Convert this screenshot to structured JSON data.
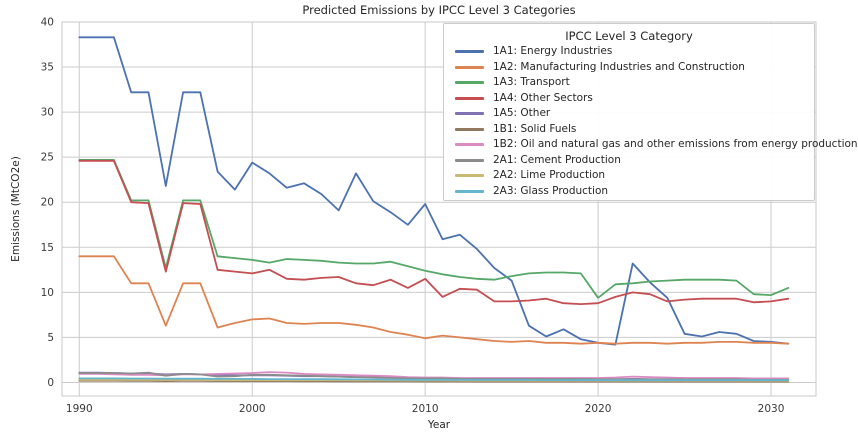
{
  "chart_data": {
    "type": "line",
    "title": "Predicted Emissions by IPCC Level 3 Categories",
    "xlabel": "Year",
    "ylabel": "Emissions (MtCO2e)",
    "xlim": [
      1989.0,
      2032.6
    ],
    "ylim": [
      -1.5,
      40.0
    ],
    "xticks": [
      1990,
      2000,
      2010,
      2020,
      2030
    ],
    "yticks": [
      0,
      5,
      10,
      15,
      20,
      25,
      30,
      35,
      40
    ],
    "grid": true,
    "legend": {
      "title": "IPCC Level 3 Category",
      "position": "upper right"
    },
    "x": [
      1990,
      1991,
      1992,
      1993,
      1994,
      1995,
      1996,
      1997,
      1998,
      1999,
      2000,
      2001,
      2002,
      2003,
      2004,
      2005,
      2006,
      2007,
      2008,
      2009,
      2010,
      2011,
      2012,
      2013,
      2014,
      2015,
      2016,
      2017,
      2018,
      2019,
      2020,
      2021,
      2022,
      2023,
      2024,
      2025,
      2026,
      2027,
      2028,
      2029,
      2030,
      2031
    ],
    "series": [
      {
        "name": "1A1: Energy Industries",
        "color": "#4C72B0",
        "values": [
          38.3,
          38.3,
          38.3,
          32.2,
          32.2,
          21.8,
          32.2,
          32.2,
          23.4,
          21.4,
          24.4,
          23.2,
          21.6,
          22.1,
          20.9,
          19.1,
          23.2,
          20.1,
          18.9,
          17.5,
          19.8,
          15.9,
          16.4,
          14.8,
          12.7,
          11.3,
          6.3,
          5.1,
          5.9,
          4.8,
          4.4,
          4.2,
          13.2,
          11.1,
          9.4,
          5.4,
          5.1,
          5.6,
          5.4,
          4.6,
          4.5,
          4.3
        ]
      },
      {
        "name": "1A2: Manufacturing Industries and Construction",
        "color": "#DD8452",
        "values": [
          14.0,
          14.0,
          14.0,
          11.0,
          11.0,
          6.3,
          11.0,
          11.0,
          6.1,
          6.6,
          7.0,
          7.1,
          6.6,
          6.5,
          6.6,
          6.6,
          6.4,
          6.1,
          5.6,
          5.3,
          4.9,
          5.2,
          5.0,
          4.8,
          4.6,
          4.5,
          4.6,
          4.4,
          4.4,
          4.3,
          4.4,
          4.3,
          4.4,
          4.4,
          4.3,
          4.4,
          4.4,
          4.5,
          4.5,
          4.4,
          4.4,
          4.3
        ]
      },
      {
        "name": "1A3: Transport",
        "color": "#55A868",
        "values": [
          24.7,
          24.7,
          24.7,
          20.2,
          20.2,
          12.7,
          20.2,
          20.2,
          14.0,
          13.8,
          13.6,
          13.3,
          13.7,
          13.6,
          13.5,
          13.3,
          13.2,
          13.2,
          13.4,
          12.9,
          12.4,
          12.0,
          11.7,
          11.5,
          11.4,
          11.8,
          12.1,
          12.2,
          12.2,
          12.1,
          9.4,
          10.9,
          11.0,
          11.2,
          11.3,
          11.4,
          11.4,
          11.4,
          11.3,
          9.8,
          9.7,
          10.5
        ]
      },
      {
        "name": "1A4: Other Sectors",
        "color": "#C44E52",
        "values": [
          24.6,
          24.6,
          24.6,
          20.0,
          19.9,
          12.3,
          19.9,
          19.8,
          12.5,
          12.3,
          12.1,
          12.5,
          11.5,
          11.4,
          11.6,
          11.7,
          11.0,
          10.8,
          11.4,
          10.5,
          11.5,
          9.5,
          10.4,
          10.3,
          9.0,
          9.0,
          9.1,
          9.3,
          8.8,
          8.7,
          8.8,
          9.5,
          10.0,
          9.8,
          9.0,
          9.2,
          9.3,
          9.3,
          9.3,
          8.9,
          9.0,
          9.3
        ]
      },
      {
        "name": "1A5: Other",
        "color": "#8172B3",
        "values": [
          1.1,
          1.1,
          1.05,
          1.0,
          1.0,
          0.9,
          0.95,
          0.9,
          0.85,
          0.8,
          0.8,
          0.8,
          0.75,
          0.7,
          0.7,
          0.65,
          0.6,
          0.6,
          0.55,
          0.5,
          0.5,
          0.45,
          0.45,
          0.4,
          0.4,
          0.4,
          0.4,
          0.4,
          0.35,
          0.35,
          0.35,
          0.35,
          0.4,
          0.35,
          0.35,
          0.35,
          0.3,
          0.3,
          0.3,
          0.3,
          0.3,
          0.3
        ]
      },
      {
        "name": "1B1: Solid Fuels",
        "color": "#937860",
        "values": [
          0.2,
          0.2,
          0.2,
          0.18,
          0.18,
          0.15,
          0.17,
          0.17,
          0.15,
          0.15,
          0.15,
          0.15,
          0.15,
          0.14,
          0.14,
          0.13,
          0.13,
          0.12,
          0.12,
          0.12,
          0.11,
          0.11,
          0.11,
          0.1,
          0.1,
          0.1,
          0.1,
          0.1,
          0.1,
          0.1,
          0.1,
          0.1,
          0.1,
          0.1,
          0.1,
          0.1,
          0.1,
          0.1,
          0.1,
          0.1,
          0.1,
          0.1
        ]
      },
      {
        "name": "1B2: Oil and natural gas and other emissions from energy production",
        "color": "#DA8BC3",
        "values": [
          0.95,
          0.95,
          0.9,
          0.85,
          0.85,
          0.8,
          0.9,
          0.9,
          0.95,
          1.0,
          1.05,
          1.15,
          1.1,
          0.95,
          0.9,
          0.85,
          0.8,
          0.75,
          0.7,
          0.6,
          0.55,
          0.55,
          0.5,
          0.5,
          0.5,
          0.5,
          0.5,
          0.5,
          0.5,
          0.5,
          0.5,
          0.55,
          0.65,
          0.6,
          0.55,
          0.5,
          0.5,
          0.5,
          0.5,
          0.45,
          0.45,
          0.45
        ]
      },
      {
        "name": "2A1: Cement Production",
        "color": "#8C8C8C",
        "values": [
          1.05,
          1.05,
          1.05,
          1.0,
          1.1,
          0.75,
          0.95,
          0.9,
          0.65,
          0.7,
          0.85,
          0.85,
          0.8,
          0.75,
          0.7,
          0.65,
          0.6,
          0.55,
          0.5,
          0.45,
          0.45,
          0.45,
          0.4,
          0.4,
          0.4,
          0.4,
          0.4,
          0.4,
          0.4,
          0.4,
          0.35,
          0.35,
          0.35,
          0.35,
          0.35,
          0.35,
          0.35,
          0.35,
          0.35,
          0.3,
          0.3,
          0.3
        ]
      },
      {
        "name": "2A2: Lime Production",
        "color": "#CCB974",
        "values": [
          0.3,
          0.3,
          0.3,
          0.3,
          0.3,
          0.28,
          0.28,
          0.28,
          0.25,
          0.25,
          0.25,
          0.25,
          0.25,
          0.25,
          0.25,
          0.25,
          0.24,
          0.24,
          0.23,
          0.22,
          0.22,
          0.22,
          0.21,
          0.2,
          0.2,
          0.2,
          0.2,
          0.2,
          0.2,
          0.2,
          0.2,
          0.2,
          0.2,
          0.2,
          0.2,
          0.2,
          0.2,
          0.2,
          0.2,
          0.2,
          0.2,
          0.2
        ]
      },
      {
        "name": "2A3: Glass Production",
        "color": "#64B5CD",
        "values": [
          0.45,
          0.45,
          0.45,
          0.44,
          0.44,
          0.42,
          0.42,
          0.42,
          0.4,
          0.4,
          0.4,
          0.38,
          0.38,
          0.36,
          0.36,
          0.35,
          0.34,
          0.33,
          0.32,
          0.3,
          0.3,
          0.3,
          0.29,
          0.28,
          0.28,
          0.27,
          0.27,
          0.26,
          0.26,
          0.25,
          0.25,
          0.25,
          0.25,
          0.25,
          0.25,
          0.25,
          0.25,
          0.25,
          0.25,
          0.25,
          0.25,
          0.25
        ]
      }
    ],
    "style": {
      "grid_color": "#cccccc",
      "spine_color": "#c9c9c9",
      "tick_label_color": "#3a3a3a",
      "text_color": "#262626",
      "background": "#ffffff"
    }
  }
}
